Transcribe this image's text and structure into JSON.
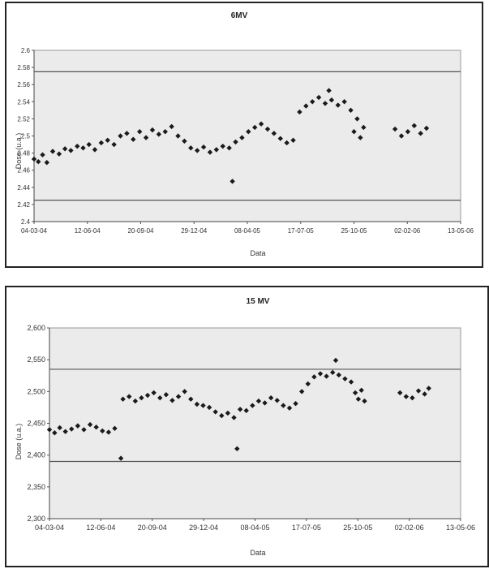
{
  "chart_data": [
    {
      "type": "scatter",
      "title": "6MV",
      "xlabel": "Data",
      "ylabel": "Dose (u.a.)",
      "ylim": [
        2.4,
        2.6
      ],
      "yticks": [
        "2.6",
        "2.58",
        "2.56",
        "2.54",
        "2.52",
        "2.5",
        "2.48",
        "2.46",
        "2.44",
        "2.42",
        "2.4"
      ],
      "xticks": [
        "04-03-04",
        "12-06-04",
        "20-09-04",
        "29-12-04",
        "08-04-05",
        "17-07-05",
        "25-10-05",
        "02-02-06",
        "13-05-06"
      ],
      "xlim": [
        "2004-03-04",
        "2006-05-13"
      ],
      "tolerance_lines": [
        2.575,
        2.425
      ],
      "grid": false,
      "marker": "diamond",
      "color": "#1a1a1a",
      "plot_background": "#ebebeb",
      "series": [
        {
          "points": [
            [
              "2004-03-04",
              2.473
            ],
            [
              "2004-03-12",
              2.47
            ],
            [
              "2004-03-20",
              2.478
            ],
            [
              "2004-03-28",
              2.469
            ],
            [
              "2004-04-08",
              2.482
            ],
            [
              "2004-04-20",
              2.479
            ],
            [
              "2004-05-01",
              2.485
            ],
            [
              "2004-05-12",
              2.483
            ],
            [
              "2004-05-24",
              2.488
            ],
            [
              "2004-06-04",
              2.486
            ],
            [
              "2004-06-15",
              2.49
            ],
            [
              "2004-06-26",
              2.484
            ],
            [
              "2004-07-08",
              2.492
            ],
            [
              "2004-07-20",
              2.495
            ],
            [
              "2004-08-01",
              2.49
            ],
            [
              "2004-08-13",
              2.5
            ],
            [
              "2004-08-25",
              2.503
            ],
            [
              "2004-09-06",
              2.496
            ],
            [
              "2004-09-18",
              2.505
            ],
            [
              "2004-09-30",
              2.498
            ],
            [
              "2004-10-12",
              2.507
            ],
            [
              "2004-10-24",
              2.502
            ],
            [
              "2004-11-05",
              2.505
            ],
            [
              "2004-11-17",
              2.511
            ],
            [
              "2004-11-29",
              2.5
            ],
            [
              "2004-12-11",
              2.494
            ],
            [
              "2004-12-23",
              2.486
            ],
            [
              "2005-01-04",
              2.483
            ],
            [
              "2005-01-16",
              2.487
            ],
            [
              "2005-01-28",
              2.481
            ],
            [
              "2005-02-09",
              2.484
            ],
            [
              "2005-02-21",
              2.488
            ],
            [
              "2005-03-05",
              2.486
            ],
            [
              "2005-03-11",
              2.447
            ],
            [
              "2005-03-17",
              2.493
            ],
            [
              "2005-03-29",
              2.498
            ],
            [
              "2005-04-10",
              2.505
            ],
            [
              "2005-04-22",
              2.51
            ],
            [
              "2005-05-04",
              2.514
            ],
            [
              "2005-05-16",
              2.508
            ],
            [
              "2005-05-28",
              2.503
            ],
            [
              "2005-06-09",
              2.497
            ],
            [
              "2005-06-21",
              2.492
            ],
            [
              "2005-07-03",
              2.495
            ],
            [
              "2005-07-15",
              2.528
            ],
            [
              "2005-07-27",
              2.535
            ],
            [
              "2005-08-08",
              2.54
            ],
            [
              "2005-08-20",
              2.545
            ],
            [
              "2005-09-01",
              2.538
            ],
            [
              "2005-09-08",
              2.553
            ],
            [
              "2005-09-13",
              2.542
            ],
            [
              "2005-09-25",
              2.536
            ],
            [
              "2005-10-07",
              2.54
            ],
            [
              "2005-10-19",
              2.53
            ],
            [
              "2005-10-25",
              2.505
            ],
            [
              "2005-10-31",
              2.52
            ],
            [
              "2005-11-06",
              2.498
            ],
            [
              "2005-11-12",
              2.51
            ],
            [
              "2006-01-10",
              2.508
            ],
            [
              "2006-01-22",
              2.5
            ],
            [
              "2006-02-03",
              2.505
            ],
            [
              "2006-02-15",
              2.512
            ],
            [
              "2006-02-27",
              2.503
            ],
            [
              "2006-03-10",
              2.509
            ]
          ]
        }
      ]
    },
    {
      "type": "scatter",
      "title": "15 MV",
      "xlabel": "Data",
      "ylabel": "Dose (u.a.)",
      "ylim": [
        2.3,
        2.6
      ],
      "yticks": [
        "2,600",
        "2,550",
        "2,500",
        "2,450",
        "2,400",
        "2,350",
        "2,300"
      ],
      "xticks": [
        "04-03-04",
        "12-06-04",
        "20-09-04",
        "29-12-04",
        "08-04-05",
        "17-07-05",
        "25-10-05",
        "02-02-06",
        "13-05-06"
      ],
      "xlim": [
        "2004-03-04",
        "2006-05-13"
      ],
      "tolerance_lines": [
        2.535,
        2.39
      ],
      "grid": false,
      "marker": "diamond",
      "color": "#1a1a1a",
      "plot_background": "#ebebeb",
      "series": [
        {
          "points": [
            [
              "2004-03-04",
              2.44
            ],
            [
              "2004-03-14",
              2.435
            ],
            [
              "2004-03-24",
              2.443
            ],
            [
              "2004-04-04",
              2.437
            ],
            [
              "2004-04-16",
              2.441
            ],
            [
              "2004-04-28",
              2.446
            ],
            [
              "2004-05-10",
              2.44
            ],
            [
              "2004-05-22",
              2.448
            ],
            [
              "2004-06-03",
              2.444
            ],
            [
              "2004-06-15",
              2.438
            ],
            [
              "2004-06-27",
              2.436
            ],
            [
              "2004-07-09",
              2.442
            ],
            [
              "2004-07-21",
              2.395
            ],
            [
              "2004-07-25",
              2.488
            ],
            [
              "2004-08-06",
              2.492
            ],
            [
              "2004-08-18",
              2.485
            ],
            [
              "2004-08-30",
              2.49
            ],
            [
              "2004-09-11",
              2.494
            ],
            [
              "2004-09-23",
              2.498
            ],
            [
              "2004-10-05",
              2.49
            ],
            [
              "2004-10-17",
              2.495
            ],
            [
              "2004-10-29",
              2.486
            ],
            [
              "2004-11-10",
              2.492
            ],
            [
              "2004-11-22",
              2.5
            ],
            [
              "2004-12-04",
              2.488
            ],
            [
              "2004-12-16",
              2.48
            ],
            [
              "2004-12-28",
              2.478
            ],
            [
              "2005-01-09",
              2.475
            ],
            [
              "2005-01-21",
              2.468
            ],
            [
              "2005-02-02",
              2.462
            ],
            [
              "2005-02-14",
              2.466
            ],
            [
              "2005-02-26",
              2.459
            ],
            [
              "2005-03-04",
              2.41
            ],
            [
              "2005-03-10",
              2.472
            ],
            [
              "2005-03-22",
              2.47
            ],
            [
              "2005-04-03",
              2.478
            ],
            [
              "2005-04-15",
              2.485
            ],
            [
              "2005-04-27",
              2.482
            ],
            [
              "2005-05-09",
              2.49
            ],
            [
              "2005-05-21",
              2.486
            ],
            [
              "2005-06-02",
              2.478
            ],
            [
              "2005-06-14",
              2.474
            ],
            [
              "2005-06-26",
              2.481
            ],
            [
              "2005-07-08",
              2.5
            ],
            [
              "2005-07-20",
              2.512
            ],
            [
              "2005-08-01",
              2.523
            ],
            [
              "2005-08-13",
              2.528
            ],
            [
              "2005-08-25",
              2.524
            ],
            [
              "2005-09-06",
              2.53
            ],
            [
              "2005-09-12",
              2.549
            ],
            [
              "2005-09-18",
              2.526
            ],
            [
              "2005-09-30",
              2.52
            ],
            [
              "2005-10-12",
              2.515
            ],
            [
              "2005-10-20",
              2.498
            ],
            [
              "2005-10-26",
              2.488
            ],
            [
              "2005-11-01",
              2.502
            ],
            [
              "2005-11-07",
              2.485
            ],
            [
              "2006-01-15",
              2.498
            ],
            [
              "2006-01-27",
              2.492
            ],
            [
              "2006-02-08",
              2.49
            ],
            [
              "2006-02-20",
              2.501
            ],
            [
              "2006-03-04",
              2.496
            ],
            [
              "2006-03-12",
              2.505
            ]
          ]
        }
      ]
    }
  ]
}
